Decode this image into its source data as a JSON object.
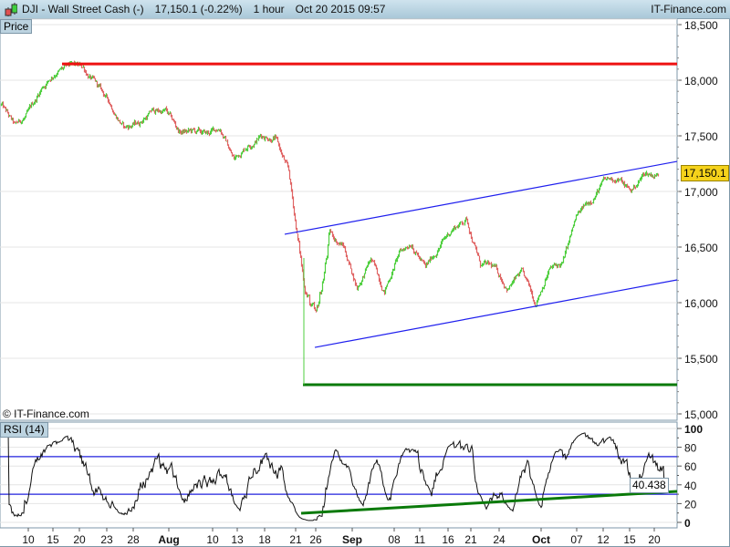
{
  "header": {
    "symbol": "DJI - Wall Street Cash (-)",
    "last": "17,150.1 (-0.22%)",
    "timeframe": "1 hour",
    "datetime": "Oct 20 2015 09:57",
    "brand": "IT-Finance.com",
    "icon": "candlestick-icon"
  },
  "price_pane": {
    "label": "Price",
    "copyright": "© IT-Finance.com",
    "last_price_label": "17,150.1"
  },
  "rsi_pane": {
    "label": "RSI (14)",
    "last_value_label": "40.438"
  },
  "colors": {
    "up": "#4fcf3f",
    "down": "#e06464",
    "resistance": "#ee1111",
    "support": "#0a7a0a",
    "channel": "#1f1fee",
    "rsi_line": "#111111",
    "last_price_bg": "#f5d21b"
  },
  "chart_data": [
    {
      "type": "candlestick",
      "title": "DJI - Wall Street Cash (-)",
      "ylim": [
        15000,
        18550
      ],
      "y_ticks": [
        "18,500",
        "18,000",
        "17,500",
        "17,000",
        "16,500",
        "16,000",
        "15,500",
        "15,000"
      ],
      "y_tick_values": [
        18500,
        18000,
        17500,
        17000,
        16500,
        16000,
        15500,
        15000
      ],
      "x_tick_labels": [
        "10",
        "15",
        "20",
        "23",
        "28",
        "Aug",
        "10",
        "13",
        "18",
        "21",
        "26",
        "Sep",
        "08",
        "11",
        "16",
        "21",
        "24",
        "Oct",
        "07",
        "12",
        "15",
        "20"
      ],
      "grid": true,
      "approx_close_path": [
        17779,
        17574,
        17697,
        17943,
        18082,
        18115,
        18107,
        17943,
        17779,
        17574,
        17615,
        17721,
        17721,
        17533,
        17533,
        17508,
        17574,
        17287,
        17426,
        17508,
        17492,
        17164,
        16262,
        15800,
        16590,
        16508,
        16139,
        16385,
        16115,
        16426,
        16549,
        16303,
        16508,
        16672,
        16754,
        16344,
        16303,
        16139,
        16262,
        16000,
        16303,
        16344,
        16754,
        16918,
        17082,
        17123,
        16999,
        17164,
        17150
      ],
      "last_close": 17150.1,
      "horizontal_lines": [
        {
          "name": "resistance",
          "price": 18147,
          "color": "#ee1111"
        },
        {
          "name": "support",
          "price": 15262,
          "color": "#0a7a0a"
        }
      ],
      "channel": {
        "upper": {
          "start_price": 16615,
          "end_price": 17270
        },
        "lower": {
          "start_price": 15598,
          "end_price": 16205
        }
      }
    },
    {
      "type": "line",
      "title": "RSI (14)",
      "ylim": [
        0,
        100
      ],
      "y_ticks": [
        "100",
        "80",
        "60",
        "40",
        "20",
        "0"
      ],
      "y_tick_values": [
        100,
        80,
        60,
        40,
        20,
        0
      ],
      "levels": [
        70,
        30
      ],
      "last_value": 40.438,
      "trendline": {
        "start_value": 9.7,
        "end_value": 33
      }
    }
  ]
}
